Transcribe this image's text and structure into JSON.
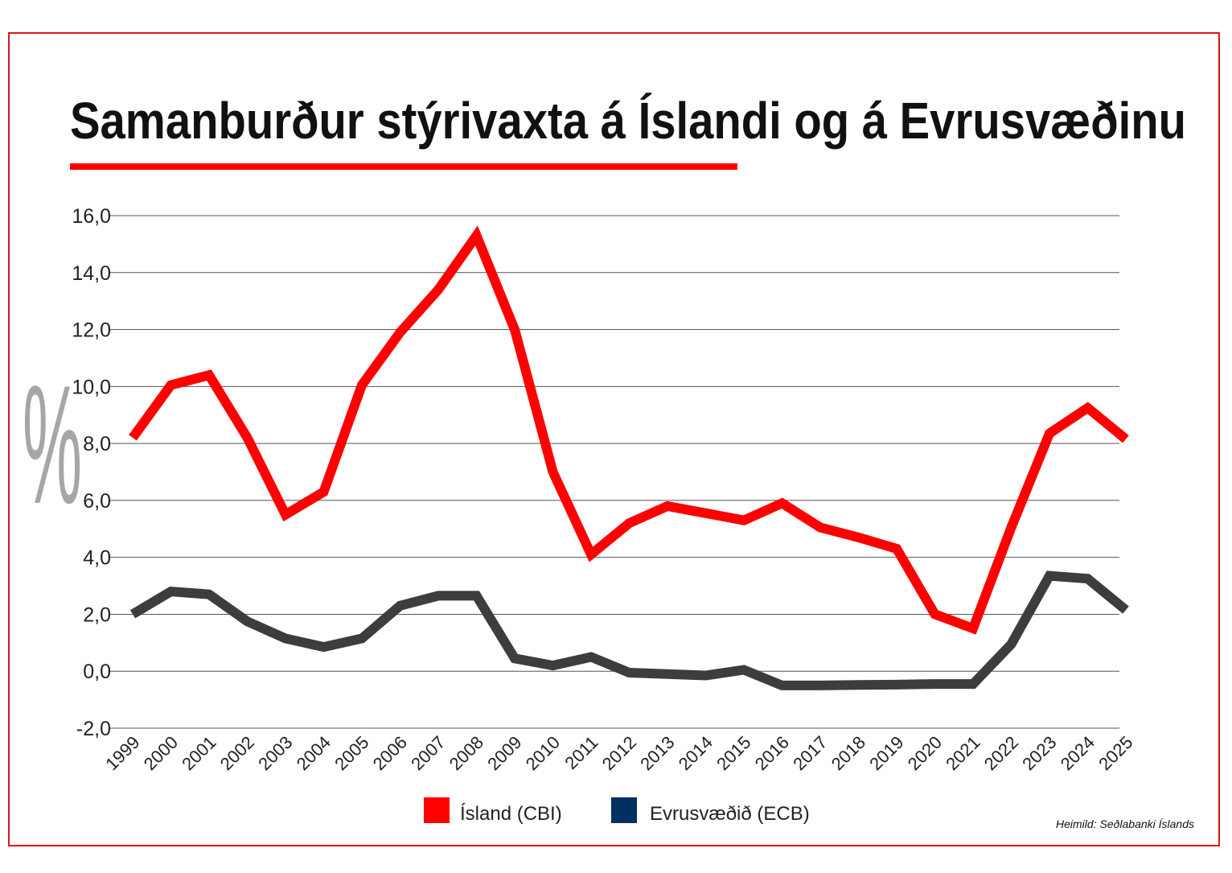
{
  "chart_data": {
    "type": "line",
    "title": "Samanburður stýrivaxta á Íslandi og á Evrusvæðinu",
    "ylabel": "%",
    "xlabel": "",
    "ylim": [
      -2,
      16
    ],
    "yticks": [
      "-2,0",
      "0,0",
      "2,0",
      "4,0",
      "6,0",
      "8,0",
      "10,0",
      "12,0",
      "14,0",
      "16,0"
    ],
    "ytick_values": [
      -2,
      0,
      2,
      4,
      6,
      8,
      10,
      12,
      14,
      16
    ],
    "xticks": [
      "1999",
      "2000",
      "2001",
      "2002",
      "2003",
      "2004",
      "2005",
      "2006",
      "2007",
      "2008",
      "2009",
      "2010",
      "2011",
      "2012",
      "2013",
      "2014",
      "2015",
      "2016",
      "2017",
      "2018",
      "2019",
      "2020",
      "2021",
      "2022",
      "2023",
      "2024",
      "2025"
    ],
    "grid": true,
    "legend_position": "bottom-center",
    "series": [
      {
        "name": "Ísland (CBI)",
        "color": "#ff0000",
        "x": [
          1999,
          2000,
          2001,
          2002,
          2003,
          2004,
          2005,
          2006,
          2007,
          2008,
          2009,
          2009.7,
          2010,
          2011,
          2012,
          2013,
          2014,
          2015,
          2016,
          2017,
          2018,
          2019,
          2020,
          2021,
          2022,
          2023,
          2024,
          2025
        ],
        "y": [
          8.2,
          10.05,
          10.4,
          8.2,
          5.5,
          6.3,
          10.05,
          11.9,
          13.4,
          15.3,
          12.0,
          8.5,
          7.0,
          4.1,
          5.2,
          5.8,
          5.55,
          5.3,
          5.9,
          5.05,
          4.7,
          4.3,
          2.0,
          1.5,
          5.05,
          8.35,
          9.25,
          8.15
        ]
      },
      {
        "name": "Evrusvæðið (ECB)",
        "color": "#3d3d3d",
        "legend_color": "#00305f",
        "x": [
          1999,
          2000,
          2001,
          2002,
          2003,
          2004,
          2005,
          2006,
          2007,
          2008,
          2009,
          2010,
          2011,
          2012,
          2013,
          2014,
          2015,
          2016,
          2017,
          2018,
          2019,
          2020,
          2021,
          2022,
          2023,
          2024,
          2025
        ],
        "y": [
          2.0,
          2.8,
          2.7,
          1.75,
          1.15,
          0.85,
          1.15,
          2.3,
          2.65,
          2.65,
          0.45,
          0.2,
          0.5,
          -0.05,
          -0.1,
          -0.15,
          0.05,
          -0.5,
          -0.5,
          -0.48,
          -0.47,
          -0.45,
          -0.45,
          0.95,
          3.35,
          3.25,
          2.15
        ]
      }
    ],
    "source": "Heimild: Seðlabanki Íslands"
  }
}
